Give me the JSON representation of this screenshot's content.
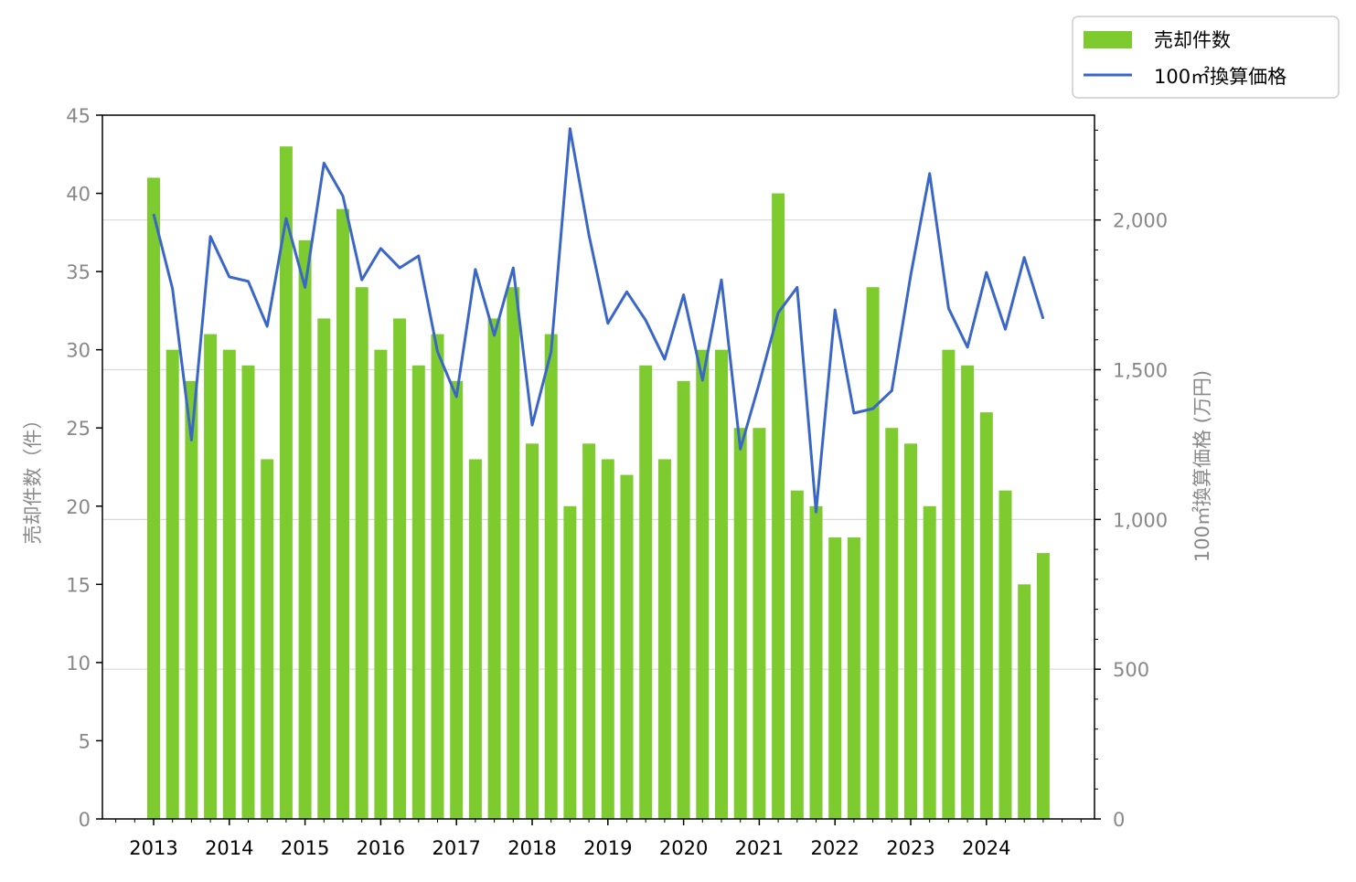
{
  "chart_data": {
    "type": "bar",
    "x_tick_labels": [
      "2013",
      "2014",
      "2015",
      "2016",
      "2017",
      "2018",
      "2019",
      "2020",
      "2021",
      "2022",
      "2023",
      "2024"
    ],
    "y_left_label": "売却件数（件）",
    "y_right_label": "100㎡換算価格 (万円)",
    "y_left_ticks": [
      "0",
      "5",
      "10",
      "15",
      "20",
      "25",
      "30",
      "35",
      "40",
      "45"
    ],
    "y_right_ticks": [
      "0",
      "500",
      "1,000",
      "1,500",
      "2,000"
    ],
    "ylim_left": [
      0,
      45
    ],
    "ylim_right": [
      0,
      2350
    ],
    "grid": "horizontal lines at right-axis ticks",
    "legend_position": "top-right, outside plot",
    "series": [
      {
        "name": "売却件数",
        "type": "bar",
        "axis": "left",
        "color": "#7ECB2F",
        "values": [
          41,
          30,
          28,
          31,
          30,
          29,
          23,
          43,
          37,
          32,
          39,
          34,
          30,
          32,
          29,
          31,
          28,
          23,
          32,
          34,
          24,
          31,
          20,
          24,
          23,
          22,
          29,
          23,
          28,
          30,
          30,
          25,
          25,
          40,
          21,
          20,
          18,
          18,
          34,
          25,
          24,
          20,
          30,
          29,
          26,
          21,
          15,
          17
        ]
      },
      {
        "name": "100㎡換算価格",
        "type": "line",
        "axis": "right",
        "color": "#3A66C8",
        "values": [
          2020,
          1770,
          1265,
          1945,
          1810,
          1795,
          1645,
          2005,
          1775,
          2190,
          2080,
          1800,
          1905,
          1840,
          1880,
          1560,
          1410,
          1835,
          1615,
          1840,
          1315,
          1560,
          2305,
          1950,
          1655,
          1760,
          1665,
          1535,
          1750,
          1465,
          1800,
          1235,
          1455,
          1690,
          1775,
          1025,
          1700,
          1355,
          1370,
          1430,
          1815,
          2155,
          1705,
          1575,
          1825,
          1635,
          1875,
          1670
        ]
      }
    ]
  }
}
